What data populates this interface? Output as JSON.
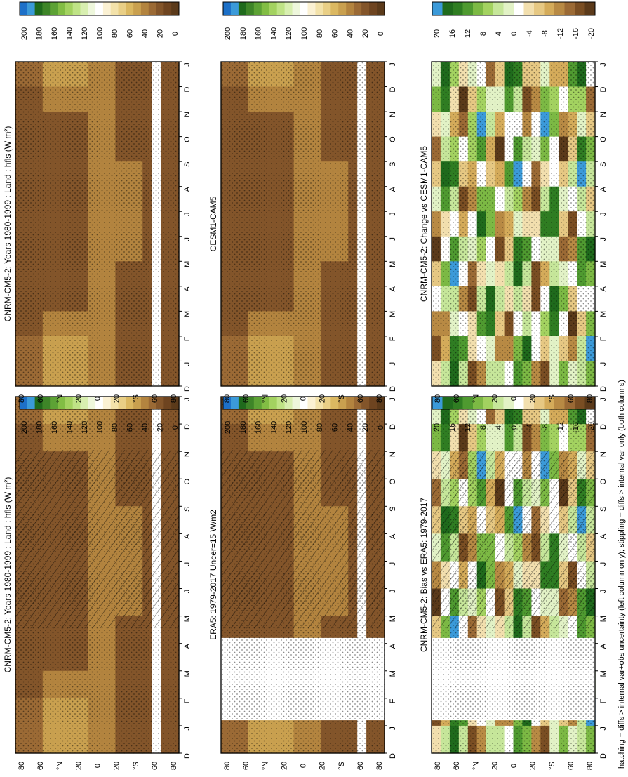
{
  "figure": {
    "footnote": "hatching = diffs > internal var+obs uncertainty (left column only); stippling = diffs > internal var only (both columns)"
  },
  "colors": {
    "absolute_scale": [
      "#5b3a1a",
      "#6e4420",
      "#83552a",
      "#9b6a35",
      "#b3843f",
      "#c9a04f",
      "#dbb861",
      "#e9cf86",
      "#f3e2aa",
      "#fbf1d3",
      "#ffffff",
      "#eef7dc",
      "#d8efb0",
      "#bfe386",
      "#a3d260",
      "#82bd44",
      "#5da235",
      "#3e8528",
      "#1f6a1c",
      "#3b9ad9",
      "#1d70c8"
    ],
    "difference_scale": [
      "#5b3a1a",
      "#7a4e23",
      "#9b6a35",
      "#b88a44",
      "#d4ab5a",
      "#e6c883",
      "#f2dfae",
      "#ffffff",
      "#e2f2c6",
      "#c6e69a",
      "#a3d260",
      "#7cb944",
      "#4f9a30",
      "#2f7d22",
      "#1f6a1c",
      "#3b9ad9"
    ]
  },
  "chart_data": [
    {
      "type": "heatmap",
      "id": "model",
      "title": "CNRM-CM5-2: Years 1980-1999 : Land : hfls (W m²)",
      "x": [
        "D",
        "J",
        "F",
        "M",
        "A",
        "M",
        "J",
        "J",
        "A",
        "S",
        "O",
        "N",
        "D",
        "J"
      ],
      "y_ticks": [
        "80",
        "60",
        "°N",
        "20",
        "0",
        "20",
        "°S",
        "60",
        "80"
      ],
      "colorbar": [
        "200",
        "180",
        "160",
        "140",
        "120",
        "100",
        "80",
        "60",
        "40",
        "20",
        "0"
      ],
      "missing_latitude_bands": [
        [
          -70,
          -55
        ]
      ],
      "values_note_units": "W m-2"
    },
    {
      "type": "heatmap",
      "id": "obs",
      "title": "ERA5: 1979-2017 Uncer=15 W/m2",
      "x": [
        "D",
        "J",
        "F",
        "M",
        "A",
        "M",
        "J",
        "J",
        "A",
        "S",
        "O",
        "N",
        "D",
        "J"
      ],
      "y_ticks": [
        "80",
        "60",
        "°N",
        "20",
        "0",
        "20",
        "°S",
        "60",
        "80"
      ],
      "colorbar": [
        "200",
        "180",
        "160",
        "140",
        "120",
        "100",
        "80",
        "60",
        "40",
        "20",
        "0"
      ],
      "missing_months": [
        "F",
        "M",
        "A"
      ]
    },
    {
      "type": "heatmap",
      "id": "bias",
      "title": "CNRM-CM5-2: Bias vs ERA5: 1979-2017",
      "x": [
        "D",
        "J",
        "F",
        "M",
        "A",
        "M",
        "J",
        "J",
        "A",
        "S",
        "O",
        "N",
        "D",
        "J"
      ],
      "y_ticks": [
        "80",
        "60",
        "°N",
        "20",
        "0",
        "20",
        "°S",
        "60",
        "80"
      ],
      "colorbar": [
        "20",
        "16",
        "12",
        "8",
        "4",
        "0",
        "-4",
        "-8",
        "-12",
        "-16",
        "-20"
      ],
      "missing_months": [
        "F",
        "M",
        "A"
      ]
    },
    {
      "type": "heatmap",
      "id": "model2",
      "title": "CNRM-CM5-2: Years 1980-1999 : Land : hfls (W m²)",
      "x": [
        "D",
        "J",
        "F",
        "M",
        "A",
        "M",
        "J",
        "J",
        "A",
        "S",
        "O",
        "N",
        "D",
        "J"
      ],
      "y_ticks": [
        "80",
        "60",
        "°N",
        "20",
        "0",
        "20",
        "°S",
        "60",
        "80"
      ],
      "colorbar": [
        "200",
        "180",
        "160",
        "140",
        "120",
        "100",
        "80",
        "60",
        "40",
        "20",
        "0"
      ]
    },
    {
      "type": "heatmap",
      "id": "ref",
      "title": "CESM1-CAM5",
      "x": [
        "D",
        "J",
        "F",
        "M",
        "A",
        "M",
        "J",
        "J",
        "A",
        "S",
        "O",
        "N",
        "D",
        "J"
      ],
      "y_ticks": [
        "80",
        "60",
        "°N",
        "20",
        "0",
        "20",
        "°S",
        "60",
        "80"
      ],
      "colorbar": [
        "200",
        "180",
        "160",
        "140",
        "120",
        "100",
        "80",
        "60",
        "40",
        "20",
        "0"
      ]
    },
    {
      "type": "heatmap",
      "id": "change",
      "title": "CNRM-CM5-2: Change vs CESM1-CAM5",
      "x": [
        "D",
        "J",
        "F",
        "M",
        "A",
        "M",
        "J",
        "J",
        "A",
        "S",
        "O",
        "N",
        "D",
        "J"
      ],
      "y_ticks": [
        "80",
        "60",
        "°N",
        "20",
        "0",
        "20",
        "°S",
        "60",
        "80"
      ],
      "colorbar": [
        "20",
        "16",
        "12",
        "8",
        "4",
        "0",
        "-4",
        "-8",
        "-12",
        "-16",
        "-20"
      ]
    }
  ]
}
